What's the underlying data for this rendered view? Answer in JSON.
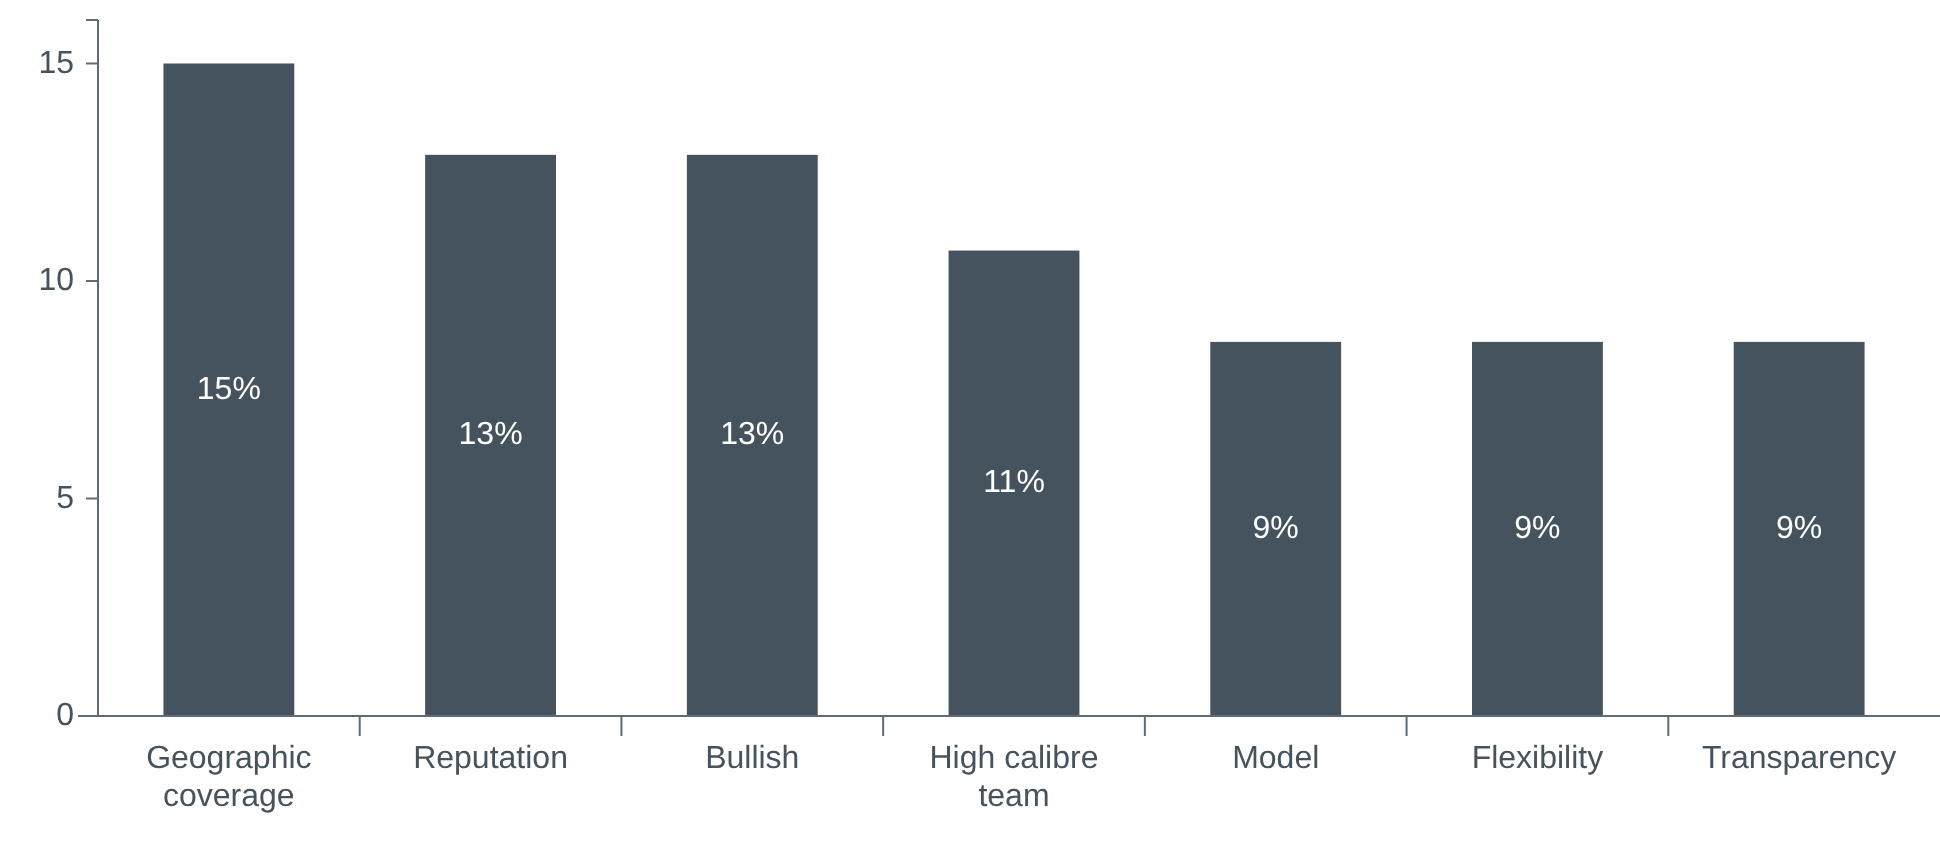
{
  "chart_data": {
    "type": "bar",
    "categories": [
      "Geographic coverage",
      "Reputation",
      "Bullish",
      "High calibre team",
      "Model",
      "Flexibility",
      "Transparency"
    ],
    "values": [
      15,
      12.9,
      12.9,
      10.7,
      8.6,
      8.6,
      8.6
    ],
    "value_labels": [
      "15%",
      "13%",
      "13%",
      "11%",
      "9%",
      "9%",
      "9%"
    ],
    "color": "#45535e",
    "ylim": [
      0,
      16
    ],
    "yticks": [
      0,
      5,
      10,
      15,
      {
        "value": 16,
        "label": null
      }
    ],
    "grid": false
  }
}
